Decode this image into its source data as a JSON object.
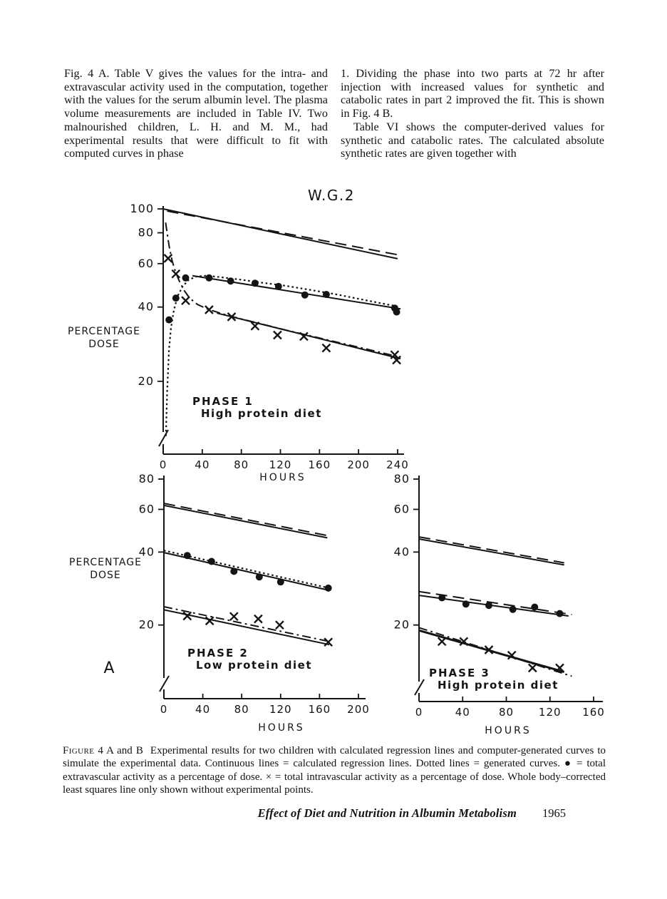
{
  "body_text": {
    "left_column": "Fig. 4 A. Table V gives the values for the intra- and extravascular activity used in the computation, together with the values for the serum albumin level. The plasma volume measurements are included in Table IV. Two malnourished children, L. H. and M. M., had experimental results that were difficult to fit with computed curves in phase",
    "right_column_p1": "1. Dividing the phase into two parts at 72 hr after injection with increased values for synthetic and catabolic rates in part 2 improved the fit. This is shown in Fig. 4 B.",
    "right_column_p2": "Table VI shows the computer-derived values for synthetic and catabolic rates. The calculated absolute synthetic rates are given together with"
  },
  "caption": {
    "label": "Figure",
    "label_rest": " 4 A and B",
    "text": "Experimental results for two children with calculated regression lines and computer-generated curves to simulate the experimental data. Continuous lines = calculated regression lines. Dotted lines = generated curves. ● = total extravascular activity as a percentage of dose. × = total intravascular activity as a percentage of dose. Whole body–corrected least squares line only shown without experimental points."
  },
  "footer": {
    "title": "Effect of Diet and Nutrition in Albumin Metabolism",
    "page_number": "1965"
  },
  "chart_data": [
    {
      "id": "phase1",
      "type": "line",
      "title": "W.G.2",
      "xlabel": "HOURS",
      "ylabel_lines": [
        "PERCENTAGE",
        "DOSE"
      ],
      "y_scale": "log",
      "y_axis_break": true,
      "xlim": [
        0,
        250
      ],
      "x_ticks": [
        0,
        40,
        80,
        120,
        160,
        200,
        240
      ],
      "y_ticks": [
        100,
        80,
        60,
        40,
        20
      ],
      "annotation": [
        "PHASE 1",
        "High protein diet"
      ],
      "series": [
        {
          "name": "whole-body-regression-line",
          "style": "solid",
          "width": 2,
          "points": [
            [
              0,
              100
            ],
            [
              240,
              62.8
            ]
          ]
        },
        {
          "name": "whole-body-generated-curve",
          "style": "dashed",
          "width": 2,
          "points": [
            [
              4,
              98
            ],
            [
              240,
              65.2
            ]
          ]
        },
        {
          "name": "extravascular-generated-curve",
          "style": "dotted",
          "width": 2.2,
          "points": [
            [
              2.8,
              12
            ],
            [
              4,
              18
            ],
            [
              6,
              27
            ],
            [
              8,
              33
            ],
            [
              11,
              39
            ],
            [
              15,
              44.5
            ],
            [
              20,
              48.5
            ],
            [
              26,
              51.5
            ],
            [
              34,
              53.2
            ],
            [
              45,
              53.6
            ],
            [
              60,
              52.8
            ],
            [
              80,
              51.6
            ],
            [
              100,
              50.3
            ],
            [
              125,
              48.8
            ],
            [
              150,
              47
            ],
            [
              175,
              45.2
            ],
            [
              205,
              42.8
            ],
            [
              240,
              40.2
            ]
          ]
        },
        {
          "name": "extravascular-regression-line",
          "style": "solid",
          "width": 2,
          "points": [
            [
              30,
              53.6
            ],
            [
              243,
              39.3
            ]
          ]
        },
        {
          "name": "intravascular-generated-curve",
          "style": "dashdot",
          "width": 2,
          "points": [
            [
              2.5,
              88
            ],
            [
              4,
              80
            ],
            [
              6,
              71
            ],
            [
              9,
              62
            ],
            [
              12,
              56.5
            ],
            [
              16,
              51.5
            ],
            [
              21,
              47
            ],
            [
              27,
              43.5
            ],
            [
              35,
              41
            ],
            [
              45,
              39.3
            ],
            [
              60,
              37.6
            ],
            [
              80,
              35.8
            ],
            [
              100,
              34.2
            ],
            [
              125,
              32.3
            ],
            [
              150,
              30.6
            ],
            [
              175,
              29
            ],
            [
              205,
              27.2
            ],
            [
              240,
              25.2
            ]
          ]
        },
        {
          "name": "intravascular-regression-line",
          "style": "solid",
          "width": 2,
          "points": [
            [
              55,
              37.8
            ],
            [
              243,
              24.7
            ]
          ]
        },
        {
          "name": "extravascular-points",
          "marker": "dot",
          "points": [
            [
              6,
              35.5
            ],
            [
              13,
              43.5
            ],
            [
              23,
              52.5
            ],
            [
              47,
              52.5
            ],
            [
              69,
              51
            ],
            [
              94,
              50
            ],
            [
              118,
              48.5
            ],
            [
              145,
              44.8
            ],
            [
              167,
              45
            ],
            [
              237,
              39.6
            ],
            [
              239,
              38.2
            ]
          ]
        },
        {
          "name": "intravascular-points",
          "marker": "x",
          "points": [
            [
              5,
              63
            ],
            [
              13,
              54.5
            ],
            [
              23,
              42.5
            ],
            [
              47,
              39
            ],
            [
              70,
              36.5
            ],
            [
              94,
              33.5
            ],
            [
              117,
              30.8
            ],
            [
              144,
              30.4
            ],
            [
              167,
              27.3
            ],
            [
              237,
              25.6
            ],
            [
              239,
              24.4
            ]
          ]
        }
      ]
    },
    {
      "id": "phase2",
      "type": "line",
      "title": "",
      "xlabel": "HOURS",
      "ylabel_lines": [
        "PERCENTAGE",
        "DOSE"
      ],
      "y_scale": "log",
      "y_axis_break": true,
      "panel_label": "A",
      "xlim": [
        0,
        208
      ],
      "x_ticks": [
        0,
        40,
        80,
        120,
        160,
        200
      ],
      "y_ticks": [
        80,
        60,
        40,
        20
      ],
      "annotation": [
        "PHASE 2",
        "Low protein diet"
      ],
      "series": [
        {
          "name": "whole-body-regression-line",
          "style": "solid",
          "width": 2,
          "points": [
            [
              0,
              62.3
            ],
            [
              168,
              45.8
            ]
          ]
        },
        {
          "name": "whole-body-generated-curve",
          "style": "dashed",
          "width": 2,
          "points": [
            [
              0,
              63.5
            ],
            [
              168,
              46.8
            ]
          ]
        },
        {
          "name": "extravascular-regression-line",
          "style": "solid",
          "width": 2,
          "points": [
            [
              0,
              39.8
            ],
            [
              170,
              27.8
            ]
          ]
        },
        {
          "name": "extravascular-generated-curve",
          "style": "dotted",
          "width": 2.2,
          "points": [
            [
              0,
              40.6
            ],
            [
              170,
              28.4
            ]
          ]
        },
        {
          "name": "intravascular-regression-line",
          "style": "solid",
          "width": 2,
          "points": [
            [
              0,
              23.1
            ],
            [
              170,
              16.6
            ]
          ]
        },
        {
          "name": "intravascular-generated-curve",
          "style": "dashdot",
          "width": 2,
          "points": [
            [
              0,
              23.8
            ],
            [
              170,
              17.1
            ]
          ]
        },
        {
          "name": "extravascular-points",
          "marker": "dot",
          "points": [
            [
              24,
              38.7
            ],
            [
              49,
              36.6
            ],
            [
              72,
              33.3
            ],
            [
              98,
              31.6
            ],
            [
              120,
              30.1
            ],
            [
              169,
              28.4
            ]
          ]
        },
        {
          "name": "intravascular-points",
          "marker": "x",
          "points": [
            [
              24,
              21.8
            ],
            [
              47,
              20.8
            ],
            [
              72,
              21.7
            ],
            [
              97,
              21.2
            ],
            [
              119,
              20
            ],
            [
              169,
              17
            ]
          ]
        }
      ]
    },
    {
      "id": "phase3",
      "type": "line",
      "title": "",
      "xlabel": "HOURS",
      "ylabel_lines": [],
      "y_scale": "log",
      "y_axis_break": true,
      "xlim": [
        0,
        168
      ],
      "x_ticks": [
        0,
        40,
        80,
        120,
        160
      ],
      "y_ticks": [
        80,
        60,
        40,
        20
      ],
      "annotation": [
        "PHASE 3",
        "High protein diet"
      ],
      "series": [
        {
          "name": "whole-body-regression-line",
          "style": "solid",
          "width": 2,
          "points": [
            [
              0,
              45.3
            ],
            [
              133,
              35.4
            ]
          ]
        },
        {
          "name": "whole-body-generated-curve",
          "style": "dashed",
          "width": 2,
          "points": [
            [
              0,
              46.2
            ],
            [
              133,
              36.1
            ]
          ]
        },
        {
          "name": "extravascular-regression-line",
          "style": "solid",
          "width": 2,
          "points": [
            [
              0,
              26.5
            ],
            [
              137,
              21.8
            ]
          ]
        },
        {
          "name": "extravascular-generated-curve",
          "style": "dashed",
          "width": 2,
          "points": [
            [
              0,
              27.5
            ],
            [
              140,
              22.1
            ]
          ]
        },
        {
          "name": "intravascular-regression-line",
          "style": "solid",
          "width": 3,
          "points": [
            [
              0,
              19
            ],
            [
              133,
              12.8
            ]
          ]
        },
        {
          "name": "intravascular-generated-curve",
          "style": "dashdot",
          "width": 2,
          "points": [
            [
              0,
              19.5
            ],
            [
              140,
              12.3
            ]
          ]
        },
        {
          "name": "extravascular-points",
          "marker": "dot",
          "points": [
            [
              21,
              25.9
            ],
            [
              43,
              24.4
            ],
            [
              64,
              24.1
            ],
            [
              86,
              23.2
            ],
            [
              106,
              23.7
            ],
            [
              129,
              22.3
            ]
          ]
        },
        {
          "name": "intravascular-points",
          "marker": "x",
          "points": [
            [
              21,
              17.1
            ],
            [
              41,
              17.1
            ],
            [
              64,
              15.8
            ],
            [
              85,
              15
            ],
            [
              104,
              13.3
            ],
            [
              129,
              13.3
            ]
          ]
        }
      ]
    }
  ]
}
